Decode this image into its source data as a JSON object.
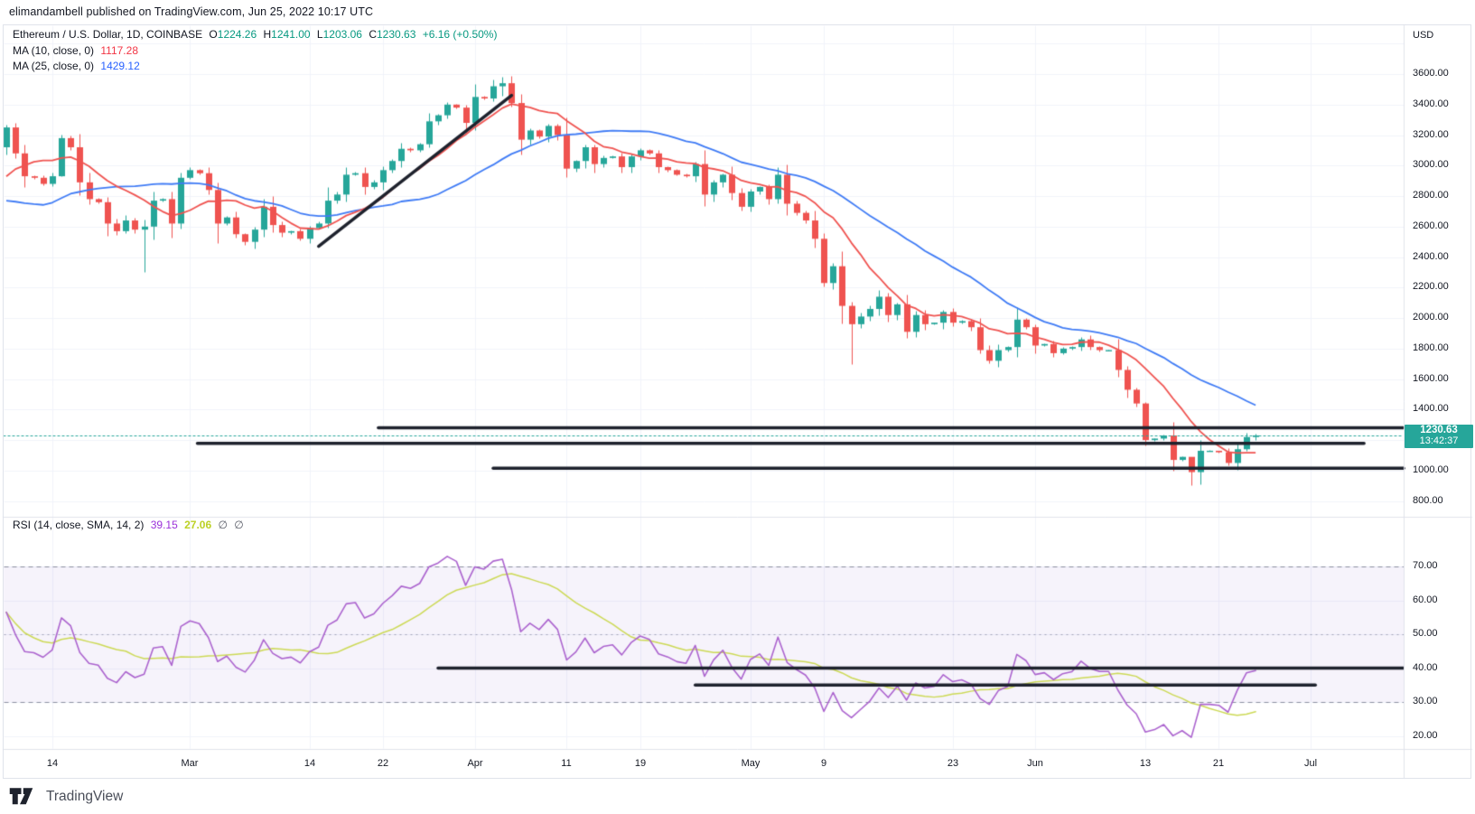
{
  "attribution": "elimandambell published on TradingView.com, Jun 25, 2022 10:17 UTC",
  "legend": {
    "symbol": "Ethereum / U.S. Dollar, 1D, COINBASE",
    "ohlc": {
      "o_label": "O",
      "o": "1224.26",
      "h_label": "H",
      "h": "1241.00",
      "l_label": "L",
      "l": "1203.06",
      "c_label": "C",
      "c": "1230.63",
      "change": "+6.16 (+0.50%)"
    },
    "ma10": {
      "label": "MA (10, close, 0)",
      "value": "1117.28"
    },
    "ma25": {
      "label": "MA (25, close, 0)",
      "value": "1429.12"
    },
    "rsi": {
      "label": "RSI (14, close, SMA, 14, 2)",
      "value1": "39.15",
      "value2": "27.06",
      "empty1": "∅",
      "empty2": "∅"
    }
  },
  "price_axis": {
    "currency": "USD",
    "last_price": "1230.63",
    "countdown": "13:42:37",
    "ticks": [
      {
        "label": "3600.00",
        "price": 3600
      },
      {
        "label": "3400.00",
        "price": 3400
      },
      {
        "label": "3200.00",
        "price": 3200
      },
      {
        "label": "3000.00",
        "price": 3000
      },
      {
        "label": "2800.00",
        "price": 2800
      },
      {
        "label": "2600.00",
        "price": 2600
      },
      {
        "label": "2400.00",
        "price": 2400
      },
      {
        "label": "2200.00",
        "price": 2200
      },
      {
        "label": "2000.00",
        "price": 2000
      },
      {
        "label": "1800.00",
        "price": 1800
      },
      {
        "label": "1600.00",
        "price": 1600
      },
      {
        "label": "1400.00",
        "price": 1400
      },
      {
        "label": "1000.00",
        "price": 1000
      },
      {
        "label": "800.00",
        "price": 800
      }
    ]
  },
  "rsi_axis": {
    "ticks": [
      {
        "label": "70.00",
        "value": 70
      },
      {
        "label": "60.00",
        "value": 60
      },
      {
        "label": "50.00",
        "value": 50
      },
      {
        "label": "40.00",
        "value": 40
      },
      {
        "label": "30.00",
        "value": 30
      },
      {
        "label": "20.00",
        "value": 20
      }
    ]
  },
  "time_axis": {
    "ticks": [
      {
        "label": "14",
        "bar": 5
      },
      {
        "label": "Mar",
        "bar": 20
      },
      {
        "label": "14",
        "bar": 33
      },
      {
        "label": "22",
        "bar": 41
      },
      {
        "label": "Apr",
        "bar": 51
      },
      {
        "label": "11",
        "bar": 61
      },
      {
        "label": "19",
        "bar": 69
      },
      {
        "label": "May",
        "bar": 81
      },
      {
        "label": "9",
        "bar": 89
      },
      {
        "label": "23",
        "bar": 103
      },
      {
        "label": "Jun",
        "bar": 112
      },
      {
        "label": "13",
        "bar": 124
      },
      {
        "label": "21",
        "bar": 132
      },
      {
        "label": "Jul",
        "bar": 142
      }
    ]
  },
  "footer": {
    "brand": "TradingView"
  },
  "colors": {
    "up": "#26a69a",
    "down": "#ef5350",
    "ma10_line": "#ef5350",
    "ma25_line": "#3f7bf5",
    "rsi_line": "#ab63ce",
    "rsi_sma_line": "#ccd955",
    "rsi_band_fill": "rgba(126,87,194,0.07)",
    "drawing": "#1e222d",
    "grid": "#f0f3fa",
    "badge_bg": "#26a69a",
    "current_price_line": "#26a69a"
  },
  "chart_data": {
    "type": "candlestick+line",
    "title": "Ethereum / U.S. Dollar, 1D, COINBASE",
    "interval": "1D",
    "start_date": "2022-02-09",
    "end_date": "2022-06-25",
    "ylabel": "USD",
    "price_axis_range_shown": [
      760,
      3930
    ],
    "rsi_axis_range_shown": [
      15,
      80
    ],
    "last_bar": {
      "open": 1224.26,
      "high": 1241.0,
      "low": 1203.06,
      "close": 1230.63,
      "change": "+6.16 (+0.50%)"
    },
    "prehistory": [
      3320,
      3240,
      3160,
      3090,
      3000,
      2560,
      2440,
      2410,
      2560,
      2460,
      2540,
      2470,
      2430,
      2600,
      2540,
      2450,
      2600,
      2690,
      2680,
      2790,
      2940,
      3010,
      3060,
      3150,
      3120
    ],
    "closes": [
      3250,
      3080,
      2930,
      2920,
      2880,
      2930,
      3180,
      3120,
      2890,
      2780,
      2760,
      2620,
      2570,
      2640,
      2580,
      2600,
      2770,
      2780,
      2620,
      2920,
      2970,
      2950,
      2840,
      2620,
      2660,
      2550,
      2500,
      2580,
      2730,
      2610,
      2560,
      2570,
      2520,
      2590,
      2620,
      2770,
      2810,
      2940,
      2950,
      2860,
      2890,
      2970,
      3030,
      3110,
      3100,
      3140,
      3290,
      3330,
      3400,
      3380,
      3280,
      3450,
      3440,
      3520,
      3540,
      3410,
      3170,
      3230,
      3190,
      3260,
      3200,
      2980,
      3030,
      3120,
      3010,
      3050,
      3060,
      2990,
      3060,
      3100,
      3080,
      2990,
      2970,
      2940,
      2930,
      3010,
      2810,
      2890,
      2940,
      2820,
      2730,
      2830,
      2860,
      2780,
      2940,
      2750,
      2690,
      2640,
      2520,
      2230,
      2340,
      2080,
      1960,
      2010,
      2060,
      2140,
      2020,
      2090,
      1910,
      2020,
      1960,
      1970,
      2040,
      1970,
      1980,
      1940,
      1790,
      1720,
      1790,
      1810,
      1990,
      1940,
      1820,
      1830,
      1770,
      1800,
      1810,
      1860,
      1810,
      1790,
      1790,
      1660,
      1530,
      1440,
      1200,
      1210,
      1230,
      1070,
      1090,
      990,
      1130,
      1130,
      1120,
      1050,
      1140,
      1220,
      1230.63
    ],
    "wick_overrides": {
      "0": [
        3268,
        3072
      ],
      "6": [
        3205,
        2928
      ],
      "15": [
        2648,
        2300
      ],
      "19": [
        2955,
        2585
      ],
      "53": [
        3565,
        3425
      ],
      "54": [
        3582,
        3455
      ],
      "89": [
        2560,
        2205
      ],
      "92": [
        2105,
        1700
      ],
      "124": [
        1448,
        1168
      ],
      "129": [
        1078,
        902
      ],
      "135": [
        1247,
        1128
      ],
      "136": [
        1241,
        1203
      ]
    },
    "indicators": {
      "ma10": {
        "period": 10,
        "last_value": 1117.28
      },
      "ma25": {
        "period": 25,
        "last_value": 1429.12
      },
      "rsi": {
        "period": 14,
        "last_value": 39.15,
        "sma_period": 14,
        "sma_last_value": 27.06,
        "bands": [
          70,
          50,
          30
        ]
      }
    },
    "drawings": {
      "trendline": {
        "bar1": 34,
        "price1": 2470,
        "bar2": 55,
        "price2": 3460
      },
      "price_lines": [
        {
          "price": 1280,
          "bar1": 40.5,
          "bar2": null
        },
        {
          "price": 1178,
          "bar1": 20.8,
          "bar2": 147.8
        },
        {
          "price": 1015,
          "bar1": 53,
          "bar2": null
        }
      ],
      "rsi_lines": [
        {
          "level": 40,
          "bar1": 47,
          "bar2": null
        },
        {
          "level": 35,
          "bar1": 75,
          "bar2": 142.5
        }
      ]
    }
  }
}
